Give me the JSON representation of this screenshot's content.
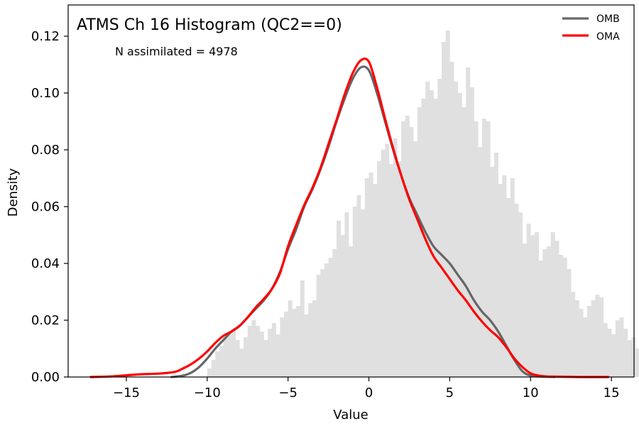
{
  "chart_data": {
    "type": "area",
    "title": "ATMS Ch 16 Histogram (QC2==0)",
    "annotation": "N assimilated = 4978",
    "xlabel": "Value",
    "ylabel": "Density",
    "xlim": [
      -18.6,
      16.4
    ],
    "ylim": [
      0,
      0.131
    ],
    "xticks": [
      -15,
      -10,
      -5,
      0,
      5,
      10,
      15
    ],
    "xtick_labels": [
      "−15",
      "−10",
      "−5",
      "0",
      "5",
      "10",
      "15"
    ],
    "yticks": [
      0.0,
      0.02,
      0.04,
      0.06,
      0.08,
      0.1,
      0.12
    ],
    "ytick_labels": [
      "0.00",
      "0.02",
      "0.04",
      "0.06",
      "0.08",
      "0.10",
      "0.12"
    ],
    "grid": false,
    "legend_position": "top-right",
    "histogram": {
      "color": "#e0e0e0",
      "bin_edges_start": -10.0,
      "bin_width": 0.25,
      "densities": [
        0.003,
        0.006,
        0.009,
        0.011,
        0.014,
        0.015,
        0.017,
        0.013,
        0.01,
        0.014,
        0.018,
        0.02,
        0.018,
        0.016,
        0.013,
        0.017,
        0.019,
        0.015,
        0.021,
        0.023,
        0.027,
        0.024,
        0.025,
        0.034,
        0.022,
        0.026,
        0.027,
        0.036,
        0.038,
        0.04,
        0.042,
        0.045,
        0.055,
        0.05,
        0.058,
        0.046,
        0.06,
        0.064,
        0.059,
        0.07,
        0.072,
        0.068,
        0.076,
        0.08,
        0.082,
        0.075,
        0.084,
        0.076,
        0.09,
        0.092,
        0.088,
        0.083,
        0.095,
        0.098,
        0.104,
        0.101,
        0.098,
        0.105,
        0.118,
        0.122,
        0.111,
        0.104,
        0.1,
        0.095,
        0.109,
        0.102,
        0.09,
        0.081,
        0.091,
        0.09,
        0.074,
        0.079,
        0.068,
        0.071,
        0.063,
        0.07,
        0.061,
        0.058,
        0.047,
        0.054,
        0.05,
        0.051,
        0.041,
        0.045,
        0.046,
        0.051,
        0.048,
        0.043,
        0.042,
        0.038,
        0.03,
        0.027,
        0.024,
        0.021,
        0.025,
        0.027,
        0.029,
        0.028,
        0.019,
        0.017,
        0.015,
        0.02,
        0.021,
        0.017,
        0.013,
        0.014,
        0.01,
        0.011,
        0.007,
        0.009
      ]
    },
    "series": [
      {
        "name": "OMB",
        "color": "#666666",
        "x": [
          -12.2,
          -11.5,
          -11.0,
          -10.5,
          -10.0,
          -9.5,
          -9.0,
          -8.5,
          -8.0,
          -7.5,
          -7.0,
          -6.5,
          -6.0,
          -5.5,
          -5.0,
          -4.5,
          -4.0,
          -3.5,
          -3.0,
          -2.5,
          -2.0,
          -1.5,
          -1.0,
          -0.5,
          0.0,
          0.5,
          1.0,
          1.5,
          2.0,
          2.5,
          3.0,
          3.5,
          4.0,
          4.5,
          5.0,
          5.5,
          6.0,
          6.5,
          7.0,
          7.5,
          8.0,
          8.5,
          9.0,
          9.5,
          10.0,
          10.5,
          11.0,
          11.5
        ],
        "y": [
          0.0,
          0.0005,
          0.0015,
          0.0035,
          0.0065,
          0.01,
          0.013,
          0.016,
          0.018,
          0.021,
          0.024,
          0.027,
          0.031,
          0.037,
          0.045,
          0.052,
          0.06,
          0.066,
          0.073,
          0.081,
          0.09,
          0.098,
          0.105,
          0.109,
          0.108,
          0.1,
          0.09,
          0.08,
          0.071,
          0.063,
          0.057,
          0.051,
          0.046,
          0.043,
          0.04,
          0.036,
          0.032,
          0.027,
          0.023,
          0.02,
          0.016,
          0.011,
          0.006,
          0.002,
          0.0005,
          0.0002,
          0.0001,
          0.0
        ]
      },
      {
        "name": "OMA",
        "color": "#ff0000",
        "x": [
          -17.2,
          -16.0,
          -15.0,
          -14.0,
          -13.0,
          -12.0,
          -11.5,
          -11.0,
          -10.5,
          -10.0,
          -9.5,
          -9.0,
          -8.5,
          -8.0,
          -7.5,
          -7.0,
          -6.5,
          -6.0,
          -5.5,
          -5.0,
          -4.5,
          -4.0,
          -3.5,
          -3.0,
          -2.5,
          -2.0,
          -1.5,
          -1.0,
          -0.5,
          0.0,
          0.5,
          1.0,
          1.5,
          2.0,
          2.5,
          3.0,
          3.5,
          4.0,
          4.5,
          5.0,
          5.5,
          6.0,
          6.5,
          7.0,
          7.5,
          8.0,
          8.5,
          9.0,
          9.5,
          10.0,
          10.5,
          11.0,
          12.0,
          13.0,
          14.8
        ],
        "y": [
          0.0,
          0.0002,
          0.0006,
          0.001,
          0.0012,
          0.0018,
          0.003,
          0.0045,
          0.0065,
          0.009,
          0.012,
          0.0145,
          0.016,
          0.018,
          0.021,
          0.0245,
          0.0275,
          0.031,
          0.0365,
          0.046,
          0.0535,
          0.0605,
          0.0665,
          0.0735,
          0.082,
          0.0905,
          0.0995,
          0.107,
          0.1115,
          0.111,
          0.102,
          0.091,
          0.0805,
          0.071,
          0.0625,
          0.0555,
          0.0485,
          0.0425,
          0.0385,
          0.0345,
          0.0305,
          0.027,
          0.023,
          0.0195,
          0.0165,
          0.014,
          0.0105,
          0.0065,
          0.0035,
          0.0013,
          0.0005,
          0.0002,
          0.0001,
          0.0,
          0.0
        ]
      }
    ]
  }
}
